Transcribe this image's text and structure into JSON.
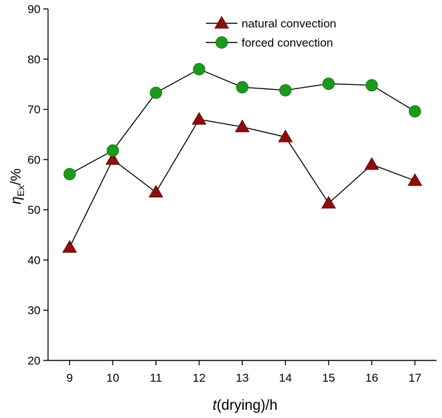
{
  "chart_data": {
    "type": "line",
    "x": [
      9,
      10,
      11,
      12,
      13,
      14,
      15,
      16,
      17
    ],
    "xlabel_italic": "t",
    "xlabel_rest": "(drying)/h",
    "ylabel_symbol": "η",
    "ylabel_sub": "Ex",
    "ylabel_rest": "/%",
    "xlim": [
      8.5,
      17.5
    ],
    "ylim": [
      20,
      90
    ],
    "yticks": [
      20,
      30,
      40,
      50,
      60,
      70,
      80,
      90
    ],
    "grid": false,
    "legend_position": "top-center",
    "series": [
      {
        "name": "natural convection",
        "marker": "triangle",
        "color": "#8b0f0f",
        "values": [
          42.5,
          60.0,
          53.5,
          68.0,
          66.5,
          64.5,
          51.3,
          59.0,
          55.8
        ]
      },
      {
        "name": "forced convection",
        "marker": "circle",
        "color": "#1a9a1a",
        "values": [
          57.1,
          61.8,
          73.3,
          78.0,
          74.4,
          73.8,
          75.1,
          74.8,
          69.6
        ]
      }
    ]
  }
}
